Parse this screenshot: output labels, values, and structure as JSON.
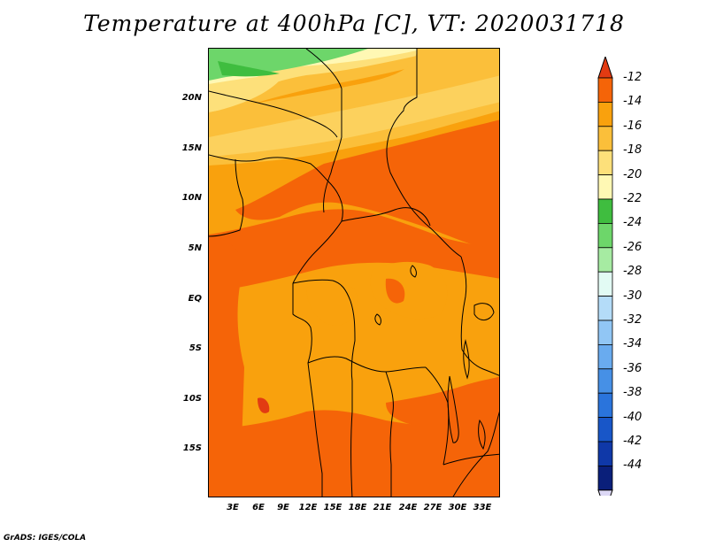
{
  "title": "Temperature at 400hPa [C], VT: 2020031718",
  "credit": "GrADS: IGES/COLA",
  "map": {
    "lat_labels": [
      "20N",
      "15N",
      "10N",
      "5N",
      "EQ",
      "5S",
      "10S",
      "15S"
    ],
    "lon_labels": [
      "3E",
      "6E",
      "9E",
      "12E",
      "15E",
      "18E",
      "21E",
      "24E",
      "27E",
      "30E",
      "33E"
    ]
  },
  "colorbar": {
    "labels": [
      "-12",
      "-14",
      "-16",
      "-18",
      "-20",
      "-22",
      "-24",
      "-26",
      "-28",
      "-30",
      "-32",
      "-34",
      "-36",
      "-38",
      "-40",
      "-42",
      "-44"
    ],
    "colors": [
      "#e23b12",
      "#f56408",
      "#f9a10d",
      "#fbbf3a",
      "#fde07a",
      "#fff8b4",
      "#3fbd3f",
      "#6dd66a",
      "#a6eba2",
      "#e2fbf4",
      "#b4dcf8",
      "#91c6f5",
      "#69abef",
      "#4690e6",
      "#2a74dc",
      "#1856c8",
      "#0f38a8",
      "#0a1f7a",
      "#dcd8f5"
    ]
  }
}
